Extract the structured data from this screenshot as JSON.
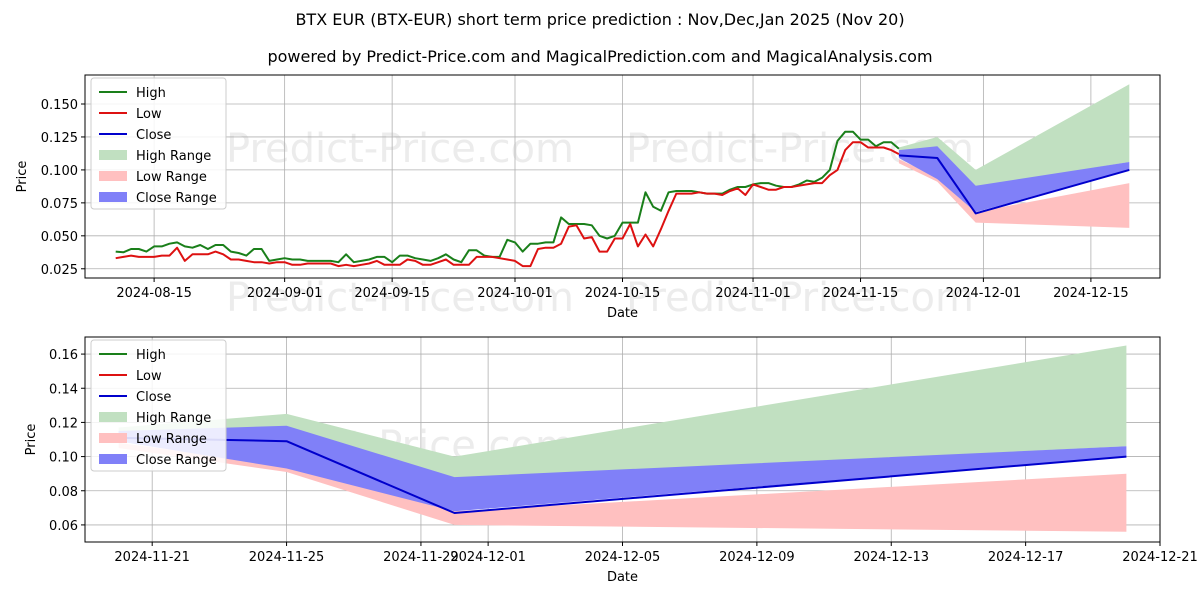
{
  "title": "BTX EUR (BTX-EUR) short term price prediction : Nov,Dec,Jan 2025 (Nov 20)",
  "subtitle": "powered by Predict-Price.com and MagicalPrediction.com and MagicalAnalysis.com",
  "watermark": "Predict-Price.com",
  "colors": {
    "high": "#1a7f1a",
    "low": "#dd1111",
    "close": "#0000cc",
    "high_range": "#c1e0c1",
    "low_range": "#ffc0c0",
    "close_range": "#8080f8",
    "grid": "#b0b0b0",
    "watermark": "#ececec"
  },
  "chart_data": [
    {
      "type": "line",
      "xlabel": "Date",
      "ylabel": "Price",
      "xlim": [
        "2024-08-06",
        "2024-12-24"
      ],
      "ylim": [
        0.018,
        0.172
      ],
      "grid": true,
      "legend_position": "top-left",
      "x_ticks": [
        "2024-08-15",
        "2024-09-01",
        "2024-09-15",
        "2024-10-01",
        "2024-10-15",
        "2024-11-01",
        "2024-11-15",
        "2024-12-01",
        "2024-12-15"
      ],
      "y_ticks": [
        0.025,
        0.05,
        0.075,
        0.1,
        0.125,
        0.15
      ],
      "y_tick_labels": [
        "0.025",
        "0.050",
        "0.075",
        "0.100",
        "0.125",
        "0.150"
      ],
      "legend": [
        "High",
        "Low",
        "Close",
        "High Range",
        "Low Range",
        "Close Range"
      ],
      "series": [
        {
          "name": "High",
          "x": [
            "2024-08-10",
            "2024-08-11",
            "2024-08-12",
            "2024-08-13",
            "2024-08-14",
            "2024-08-15",
            "2024-08-16",
            "2024-08-17",
            "2024-08-18",
            "2024-08-19",
            "2024-08-20",
            "2024-08-21",
            "2024-08-22",
            "2024-08-23",
            "2024-08-24",
            "2024-08-25",
            "2024-08-26",
            "2024-08-27",
            "2024-08-28",
            "2024-08-29",
            "2024-08-30",
            "2024-08-31",
            "2024-09-01",
            "2024-09-02",
            "2024-09-03",
            "2024-09-04",
            "2024-09-05",
            "2024-09-06",
            "2024-09-07",
            "2024-09-08",
            "2024-09-09",
            "2024-09-10",
            "2024-09-11",
            "2024-09-12",
            "2024-09-13",
            "2024-09-14",
            "2024-09-15",
            "2024-09-16",
            "2024-09-17",
            "2024-09-18",
            "2024-09-19",
            "2024-09-20",
            "2024-09-21",
            "2024-09-22",
            "2024-09-23",
            "2024-09-24",
            "2024-09-25",
            "2024-09-26",
            "2024-09-27",
            "2024-09-28",
            "2024-09-29",
            "2024-09-30",
            "2024-10-01",
            "2024-10-02",
            "2024-10-03",
            "2024-10-04",
            "2024-10-05",
            "2024-10-06",
            "2024-10-07",
            "2024-10-08",
            "2024-10-09",
            "2024-10-10",
            "2024-10-11",
            "2024-10-12",
            "2024-10-13",
            "2024-10-14",
            "2024-10-15",
            "2024-10-16",
            "2024-10-17",
            "2024-10-18",
            "2024-10-19",
            "2024-10-20",
            "2024-10-21",
            "2024-10-22",
            "2024-10-23",
            "2024-10-24",
            "2024-10-25",
            "2024-10-26",
            "2024-10-27",
            "2024-10-28",
            "2024-10-29",
            "2024-10-30",
            "2024-10-31",
            "2024-11-01",
            "2024-11-02",
            "2024-11-03",
            "2024-11-04",
            "2024-11-05",
            "2024-11-06",
            "2024-11-07",
            "2024-11-08",
            "2024-11-09",
            "2024-11-10",
            "2024-11-11",
            "2024-11-12",
            "2024-11-13",
            "2024-11-14",
            "2024-11-15",
            "2024-11-16",
            "2024-11-17",
            "2024-11-18",
            "2024-11-19",
            "2024-11-20"
          ],
          "y": [
            0.038,
            0.0375,
            0.04,
            0.04,
            0.038,
            0.042,
            0.042,
            0.044,
            0.045,
            0.042,
            0.041,
            0.043,
            0.04,
            0.043,
            0.043,
            0.038,
            0.037,
            0.035,
            0.04,
            0.04,
            0.031,
            0.032,
            0.033,
            0.032,
            0.032,
            0.031,
            0.031,
            0.031,
            0.031,
            0.03,
            0.036,
            0.03,
            0.031,
            0.032,
            0.034,
            0.034,
            0.03,
            0.035,
            0.035,
            0.033,
            0.032,
            0.031,
            0.033,
            0.036,
            0.032,
            0.03,
            0.039,
            0.039,
            0.035,
            0.034,
            0.034,
            0.047,
            0.045,
            0.038,
            0.044,
            0.044,
            0.045,
            0.045,
            0.064,
            0.059,
            0.059,
            0.059,
            0.058,
            0.05,
            0.048,
            0.05,
            0.06,
            0.06,
            0.06,
            0.083,
            0.072,
            0.069,
            0.083,
            0.084,
            0.084,
            0.084,
            0.083,
            0.082,
            0.082,
            0.082,
            0.085,
            0.087,
            0.087,
            0.089,
            0.09,
            0.09,
            0.088,
            0.087,
            0.087,
            0.089,
            0.092,
            0.091,
            0.094,
            0.1,
            0.122,
            0.129,
            0.129,
            0.123,
            0.123,
            0.118,
            0.121,
            0.121,
            0.116
          ]
        },
        {
          "name": "Low",
          "x": [
            "2024-08-10",
            "2024-08-11",
            "2024-08-12",
            "2024-08-13",
            "2024-08-14",
            "2024-08-15",
            "2024-08-16",
            "2024-08-17",
            "2024-08-18",
            "2024-08-19",
            "2024-08-20",
            "2024-08-21",
            "2024-08-22",
            "2024-08-23",
            "2024-08-24",
            "2024-08-25",
            "2024-08-26",
            "2024-08-27",
            "2024-08-28",
            "2024-08-29",
            "2024-08-30",
            "2024-08-31",
            "2024-09-01",
            "2024-09-02",
            "2024-09-03",
            "2024-09-04",
            "2024-09-05",
            "2024-09-06",
            "2024-09-07",
            "2024-09-08",
            "2024-09-09",
            "2024-09-10",
            "2024-09-11",
            "2024-09-12",
            "2024-09-13",
            "2024-09-14",
            "2024-09-15",
            "2024-09-16",
            "2024-09-17",
            "2024-09-18",
            "2024-09-19",
            "2024-09-20",
            "2024-09-21",
            "2024-09-22",
            "2024-09-23",
            "2024-09-24",
            "2024-09-25",
            "2024-09-26",
            "2024-09-27",
            "2024-09-28",
            "2024-09-29",
            "2024-09-30",
            "2024-10-01",
            "2024-10-02",
            "2024-10-03",
            "2024-10-04",
            "2024-10-05",
            "2024-10-06",
            "2024-10-07",
            "2024-10-08",
            "2024-10-09",
            "2024-10-10",
            "2024-10-11",
            "2024-10-12",
            "2024-10-13",
            "2024-10-14",
            "2024-10-15",
            "2024-10-16",
            "2024-10-17",
            "2024-10-18",
            "2024-10-19",
            "2024-10-20",
            "2024-10-21",
            "2024-10-22",
            "2024-10-23",
            "2024-10-24",
            "2024-10-25",
            "2024-10-26",
            "2024-10-27",
            "2024-10-28",
            "2024-10-29",
            "2024-10-30",
            "2024-10-31",
            "2024-11-01",
            "2024-11-02",
            "2024-11-03",
            "2024-11-04",
            "2024-11-05",
            "2024-11-06",
            "2024-11-07",
            "2024-11-08",
            "2024-11-09",
            "2024-11-10",
            "2024-11-11",
            "2024-11-12",
            "2024-11-13",
            "2024-11-14",
            "2024-11-15",
            "2024-11-16",
            "2024-11-17",
            "2024-11-18",
            "2024-11-19",
            "2024-11-20"
          ],
          "y": [
            0.033,
            0.034,
            0.035,
            0.034,
            0.034,
            0.034,
            0.035,
            0.035,
            0.041,
            0.031,
            0.036,
            0.036,
            0.036,
            0.038,
            0.036,
            0.032,
            0.032,
            0.031,
            0.03,
            0.03,
            0.029,
            0.03,
            0.03,
            0.028,
            0.028,
            0.029,
            0.029,
            0.029,
            0.029,
            0.027,
            0.028,
            0.027,
            0.028,
            0.029,
            0.031,
            0.028,
            0.028,
            0.028,
            0.032,
            0.031,
            0.028,
            0.028,
            0.03,
            0.032,
            0.028,
            0.028,
            0.028,
            0.034,
            0.034,
            0.034,
            0.033,
            0.032,
            0.031,
            0.027,
            0.027,
            0.04,
            0.041,
            0.041,
            0.044,
            0.057,
            0.058,
            0.048,
            0.049,
            0.038,
            0.038,
            0.048,
            0.048,
            0.059,
            0.042,
            0.051,
            0.042,
            0.055,
            0.069,
            0.082,
            0.082,
            0.082,
            0.083,
            0.082,
            0.082,
            0.081,
            0.084,
            0.086,
            0.081,
            0.089,
            0.087,
            0.085,
            0.085,
            0.087,
            0.087,
            0.088,
            0.089,
            0.09,
            0.09,
            0.096,
            0.1,
            0.115,
            0.121,
            0.121,
            0.117,
            0.117,
            0.117,
            0.115,
            0.112
          ]
        },
        {
          "name": "Close",
          "x": [
            "2024-11-20",
            "2024-11-25",
            "2024-11-30",
            "2024-12-20"
          ],
          "y": [
            0.111,
            0.109,
            0.067,
            0.1
          ]
        }
      ],
      "ranges": [
        {
          "name": "High Range",
          "x": [
            "2024-11-20",
            "2024-11-25",
            "2024-11-30",
            "2024-12-20"
          ],
          "upper": [
            0.117,
            0.125,
            0.1,
            0.165
          ],
          "lower": [
            0.111,
            0.114,
            0.087,
            0.106
          ]
        },
        {
          "name": "Low Range",
          "x": [
            "2024-11-20",
            "2024-11-25",
            "2024-11-30",
            "2024-12-20"
          ],
          "upper": [
            0.108,
            0.095,
            0.068,
            0.09
          ],
          "lower": [
            0.105,
            0.091,
            0.06,
            0.056
          ]
        },
        {
          "name": "Close Range",
          "x": [
            "2024-11-20",
            "2024-11-25",
            "2024-11-30",
            "2024-12-20"
          ],
          "upper": [
            0.115,
            0.118,
            0.088,
            0.106
          ],
          "lower": [
            0.109,
            0.093,
            0.068,
            0.1
          ]
        }
      ]
    },
    {
      "type": "line",
      "xlabel": "Date",
      "ylabel": "Price",
      "xlim": [
        "2024-11-19",
        "2024-12-21"
      ],
      "ylim": [
        0.05,
        0.17
      ],
      "grid": true,
      "legend_position": "top-left",
      "x_ticks": [
        "2024-11-21",
        "2024-11-25",
        "2024-11-29",
        "2024-12-01",
        "2024-12-05",
        "2024-12-09",
        "2024-12-13",
        "2024-12-17",
        "2024-12-21"
      ],
      "y_ticks": [
        0.06,
        0.08,
        0.1,
        0.12,
        0.14,
        0.16
      ],
      "y_tick_labels": [
        "0.06",
        "0.08",
        "0.10",
        "0.12",
        "0.14",
        "0.16"
      ],
      "legend": [
        "High",
        "Low",
        "Close",
        "High Range",
        "Low Range",
        "Close Range"
      ],
      "series": [
        {
          "name": "Close",
          "x": [
            "2024-11-20",
            "2024-11-25",
            "2024-11-30",
            "2024-12-20"
          ],
          "y": [
            0.111,
            0.109,
            0.067,
            0.1
          ]
        }
      ],
      "ranges": [
        {
          "name": "High Range",
          "x": [
            "2024-11-20",
            "2024-11-25",
            "2024-11-30",
            "2024-12-20"
          ],
          "upper": [
            0.117,
            0.125,
            0.1,
            0.165
          ],
          "lower": [
            0.111,
            0.114,
            0.087,
            0.106
          ]
        },
        {
          "name": "Low Range",
          "x": [
            "2024-11-20",
            "2024-11-25",
            "2024-11-30",
            "2024-12-20"
          ],
          "upper": [
            0.108,
            0.095,
            0.068,
            0.09
          ],
          "lower": [
            0.105,
            0.091,
            0.06,
            0.056
          ]
        },
        {
          "name": "Close Range",
          "x": [
            "2024-11-20",
            "2024-11-25",
            "2024-11-30",
            "2024-12-20"
          ],
          "upper": [
            0.115,
            0.118,
            0.088,
            0.106
          ],
          "lower": [
            0.109,
            0.093,
            0.068,
            0.1
          ]
        }
      ]
    }
  ]
}
